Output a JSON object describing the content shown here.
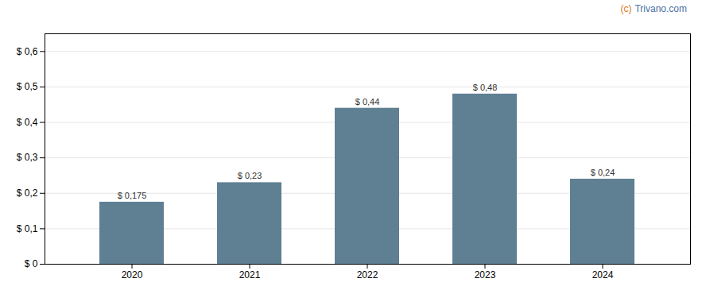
{
  "chart_data": {
    "type": "bar",
    "categories": [
      "2020",
      "2021",
      "2022",
      "2023",
      "2024"
    ],
    "values": [
      0.175,
      0.23,
      0.44,
      0.48,
      0.24
    ],
    "value_labels": [
      "$ 0,175",
      "$ 0,23",
      "$ 0,44",
      "$ 0,48",
      "$ 0,24"
    ],
    "data_labels": true,
    "color": "#5f7f93",
    "ylim": [
      0,
      0.65
    ],
    "yticks": [
      {
        "value": 0.0,
        "label": "$ 0"
      },
      {
        "value": 0.1,
        "label": "$ 0,1"
      },
      {
        "value": 0.2,
        "label": "$ 0,2"
      },
      {
        "value": 0.3,
        "label": "$ 0,3"
      },
      {
        "value": 0.4,
        "label": "$ 0,4"
      },
      {
        "value": 0.5,
        "label": "$ 0,5"
      },
      {
        "value": 0.6,
        "label": "$ 0,6"
      }
    ],
    "grid": true,
    "annotations": [
      {
        "text": "(c)",
        "color": "#e07820"
      },
      {
        "text": "Trivano.com",
        "color": "#4a6fa5"
      }
    ]
  }
}
